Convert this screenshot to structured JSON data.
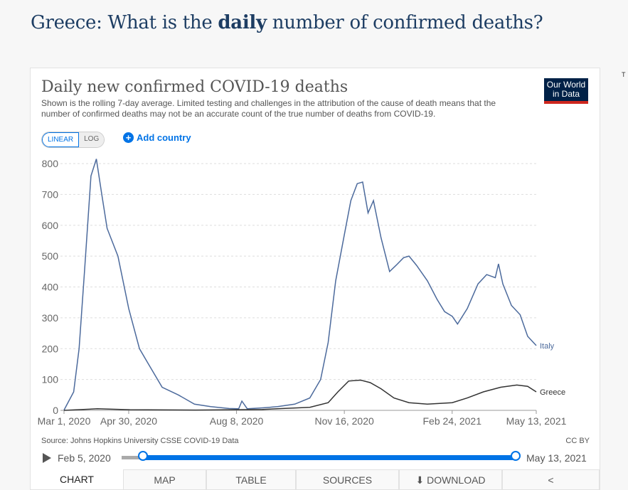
{
  "page": {
    "title_pre": "Greece: What is the ",
    "title_bold": "daily",
    "title_post": " number of confirmed deaths?"
  },
  "card": {
    "title": "Daily new confirmed COVID-19 deaths",
    "subtitle": "Shown is the rolling 7-day average. Limited testing and challenges in the attribution of the cause of death means that the number of confirmed deaths may not be an accurate count of the true number of deaths from COVID-19.",
    "logo": "Our World in Data",
    "scale_linear": "LINEAR",
    "scale_log": "LOG",
    "add_country": "Add country",
    "source": "Source: Johns Hopkins University CSSE COVID-19 Data",
    "license": "CC BY",
    "timeline_start": "Feb 5, 2020",
    "timeline_end": "May 13, 2021",
    "tabs": [
      "CHART",
      "MAP",
      "TABLE",
      "SOURCES",
      "DOWNLOAD"
    ],
    "colors": {
      "accent": "#0073e6",
      "italy": "#4c6a9c",
      "greece": "#333333"
    }
  },
  "chart_data": {
    "type": "line",
    "ylim": [
      0,
      800
    ],
    "yticks": [
      0,
      100,
      200,
      300,
      400,
      500,
      600,
      700,
      800
    ],
    "xticks": [
      "Mar 1, 2020",
      "Apr 30, 2020",
      "Aug 8, 2020",
      "Nov 16, 2020",
      "Feb 24, 2021",
      "May 13, 2021"
    ],
    "xrange": [
      "2020-03-01",
      "2021-05-13"
    ],
    "grid": true,
    "series": [
      {
        "name": "Italy",
        "points": [
          [
            "2020-03-01",
            1
          ],
          [
            "2020-03-10",
            60
          ],
          [
            "2020-03-15",
            200
          ],
          [
            "2020-03-20",
            450
          ],
          [
            "2020-03-26",
            760
          ],
          [
            "2020-03-31",
            815
          ],
          [
            "2020-04-05",
            700
          ],
          [
            "2020-04-10",
            590
          ],
          [
            "2020-04-20",
            500
          ],
          [
            "2020-04-30",
            330
          ],
          [
            "2020-05-10",
            200
          ],
          [
            "2020-05-20",
            140
          ],
          [
            "2020-05-31",
            75
          ],
          [
            "2020-06-15",
            50
          ],
          [
            "2020-06-30",
            20
          ],
          [
            "2020-07-15",
            12
          ],
          [
            "2020-08-01",
            6
          ],
          [
            "2020-08-10",
            5
          ],
          [
            "2020-08-13",
            30
          ],
          [
            "2020-08-18",
            5
          ],
          [
            "2020-09-01",
            8
          ],
          [
            "2020-09-15",
            12
          ],
          [
            "2020-10-01",
            20
          ],
          [
            "2020-10-15",
            40
          ],
          [
            "2020-10-25",
            100
          ],
          [
            "2020-11-01",
            220
          ],
          [
            "2020-11-08",
            420
          ],
          [
            "2020-11-16",
            570
          ],
          [
            "2020-11-22",
            680
          ],
          [
            "2020-11-28",
            735
          ],
          [
            "2020-12-03",
            740
          ],
          [
            "2020-12-08",
            640
          ],
          [
            "2020-12-13",
            680
          ],
          [
            "2020-12-20",
            560
          ],
          [
            "2020-12-28",
            450
          ],
          [
            "2021-01-03",
            470
          ],
          [
            "2021-01-10",
            495
          ],
          [
            "2021-01-15",
            500
          ],
          [
            "2021-01-22",
            470
          ],
          [
            "2021-02-01",
            420
          ],
          [
            "2021-02-10",
            360
          ],
          [
            "2021-02-17",
            320
          ],
          [
            "2021-02-24",
            305
          ],
          [
            "2021-03-01",
            280
          ],
          [
            "2021-03-10",
            330
          ],
          [
            "2021-03-20",
            410
          ],
          [
            "2021-03-28",
            440
          ],
          [
            "2021-04-05",
            430
          ],
          [
            "2021-04-08",
            475
          ],
          [
            "2021-04-12",
            410
          ],
          [
            "2021-04-20",
            340
          ],
          [
            "2021-04-28",
            310
          ],
          [
            "2021-05-05",
            240
          ],
          [
            "2021-05-13",
            210
          ]
        ]
      },
      {
        "name": "Greece",
        "points": [
          [
            "2020-03-01",
            0
          ],
          [
            "2020-04-01",
            5
          ],
          [
            "2020-05-01",
            2
          ],
          [
            "2020-07-01",
            1
          ],
          [
            "2020-09-01",
            3
          ],
          [
            "2020-10-15",
            10
          ],
          [
            "2020-11-01",
            25
          ],
          [
            "2020-11-10",
            60
          ],
          [
            "2020-11-20",
            95
          ],
          [
            "2020-12-01",
            98
          ],
          [
            "2020-12-10",
            90
          ],
          [
            "2020-12-20",
            70
          ],
          [
            "2021-01-01",
            40
          ],
          [
            "2021-01-15",
            25
          ],
          [
            "2021-02-01",
            20
          ],
          [
            "2021-02-24",
            25
          ],
          [
            "2021-03-10",
            40
          ],
          [
            "2021-03-25",
            60
          ],
          [
            "2021-04-10",
            75
          ],
          [
            "2021-04-25",
            82
          ],
          [
            "2021-05-05",
            78
          ],
          [
            "2021-05-13",
            60
          ]
        ]
      }
    ]
  }
}
